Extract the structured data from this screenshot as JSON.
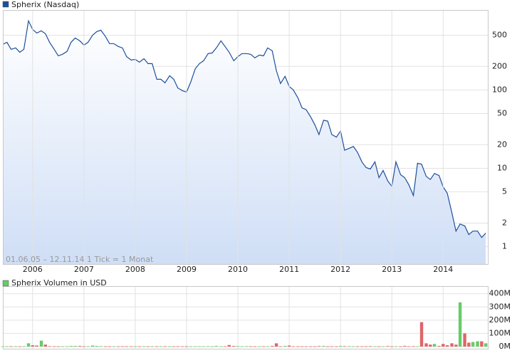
{
  "chart_data": [
    {
      "type": "line",
      "log_y": true,
      "grid": true,
      "annotation": "01.06.05 – 12.11.14   1 Tick = 1 Monat",
      "area_color": "#cfdef6",
      "xlim": [
        2005.42,
        2014.87
      ],
      "xticks": [
        2006,
        2007,
        2008,
        2009,
        2010,
        2011,
        2012,
        2013,
        2014
      ],
      "ylim": [
        0.6,
        1050
      ],
      "yticks": [
        1,
        2,
        5,
        10,
        20,
        50,
        100,
        200,
        500
      ],
      "x": [
        2005.42,
        2005.5,
        2005.58,
        2005.67,
        2005.75,
        2005.83,
        2005.92,
        2006,
        2006.08,
        2006.17,
        2006.25,
        2006.33,
        2006.42,
        2006.5,
        2006.58,
        2006.67,
        2006.75,
        2006.83,
        2006.92,
        2007,
        2007.08,
        2007.17,
        2007.25,
        2007.33,
        2007.42,
        2007.5,
        2007.58,
        2007.67,
        2007.75,
        2007.83,
        2007.92,
        2008,
        2008.08,
        2008.17,
        2008.25,
        2008.33,
        2008.42,
        2008.5,
        2008.58,
        2008.67,
        2008.75,
        2008.83,
        2008.92,
        2009,
        2009.08,
        2009.17,
        2009.25,
        2009.33,
        2009.42,
        2009.5,
        2009.58,
        2009.67,
        2009.75,
        2009.83,
        2009.92,
        2010,
        2010.08,
        2010.17,
        2010.25,
        2010.33,
        2010.42,
        2010.5,
        2010.58,
        2010.67,
        2010.75,
        2010.83,
        2010.92,
        2011,
        2011.08,
        2011.17,
        2011.25,
        2011.33,
        2011.42,
        2011.5,
        2011.58,
        2011.67,
        2011.75,
        2011.83,
        2011.92,
        2012,
        2012.08,
        2012.17,
        2012.25,
        2012.33,
        2012.42,
        2012.5,
        2012.58,
        2012.67,
        2012.75,
        2012.83,
        2012.92,
        2013,
        2013.08,
        2013.17,
        2013.25,
        2013.33,
        2013.42,
        2013.5,
        2013.58,
        2013.67,
        2013.75,
        2013.83,
        2013.92,
        2014,
        2014.08,
        2014.17,
        2014.25,
        2014.33,
        2014.42,
        2014.5,
        2014.58,
        2014.67,
        2014.75,
        2014.83
      ],
      "series": [
        {
          "name": "Spherix (Nasdaq)",
          "color": "#1c4f9c",
          "values": [
            382,
            406,
            330,
            344,
            303,
            330,
            762,
            593,
            533,
            569,
            522,
            406,
            330,
            273,
            285,
            310,
            406,
            461,
            424,
            374,
            406,
            501,
            556,
            580,
            481,
            390,
            390,
            359,
            344,
            267,
            241,
            246,
            226,
            251,
            217,
            217,
            137,
            137,
            123,
            152,
            137,
            106,
            98,
            94,
            126,
            187,
            217,
            236,
            291,
            297,
            344,
            424,
            359,
            303,
            236,
            267,
            291,
            291,
            285,
            257,
            279,
            273,
            344,
            316,
            176,
            121,
            149,
            111,
            100,
            79,
            59,
            56,
            45,
            36,
            27,
            41,
            40,
            27,
            25,
            30,
            17,
            18,
            19,
            16,
            12,
            10.2,
            9.8,
            12.1,
            7.6,
            9.4,
            6.9,
            5.9,
            12.1,
            8.3,
            7.6,
            6.2,
            4.5,
            11.6,
            11.3,
            7.9,
            7.2,
            8.6,
            8.1,
            5.8,
            4.8,
            2.7,
            1.58,
            1.95,
            1.84,
            1.43,
            1.58,
            1.58,
            1.31,
            1.49
          ]
        }
      ]
    },
    {
      "type": "bar",
      "grid": true,
      "color_up": "#66cc66",
      "color_down": "#e06666",
      "ylim": [
        0,
        420000000
      ],
      "yticks": [
        {
          "value": 0,
          "label": "0M"
        },
        {
          "value": 100000000,
          "label": "100M"
        },
        {
          "value": 200000000,
          "label": "200M"
        },
        {
          "value": 300000000,
          "label": "300M"
        },
        {
          "value": 400000000,
          "label": "400M"
        }
      ],
      "series": [
        {
          "name": "Spherix Volumen in USD",
          "values": [
            2000000,
            2000000,
            2000000,
            2000000,
            2000000,
            2000000,
            25000000,
            10000000,
            8000000,
            45000000,
            15000000,
            3000000,
            2000000,
            2000000,
            2000000,
            2000000,
            5000000,
            5000000,
            5000000,
            2000000,
            2000000,
            8000000,
            5000000,
            3000000,
            2000000,
            2000000,
            2000000,
            2000000,
            2000000,
            2000000,
            2000000,
            2000000,
            2000000,
            2000000,
            2000000,
            2000000,
            2000000,
            2000000,
            2000000,
            2000000,
            2000000,
            2000000,
            2000000,
            2000000,
            2000000,
            2000000,
            2000000,
            2000000,
            3000000,
            2000000,
            5000000,
            2000000,
            2000000,
            12000000,
            5000000,
            3000000,
            2000000,
            3000000,
            2000000,
            2000000,
            2000000,
            2000000,
            2000000,
            5000000,
            25000000,
            2000000,
            5000000,
            8000000,
            2000000,
            2000000,
            2000000,
            2000000,
            2000000,
            2000000,
            4000000,
            5000000,
            2000000,
            2000000,
            2000000,
            5000000,
            3000000,
            3000000,
            2000000,
            2000000,
            2000000,
            2000000,
            3000000,
            2000000,
            2000000,
            2000000,
            4000000,
            2000000,
            2000000,
            2000000,
            5000000,
            2000000,
            3000000,
            2000000,
            185000000,
            25000000,
            15000000,
            20000000,
            5000000,
            20000000,
            10000000,
            25000000,
            15000000,
            335000000,
            100000000,
            30000000,
            35000000,
            40000000,
            40000000,
            25000000
          ]
        }
      ]
    }
  ]
}
